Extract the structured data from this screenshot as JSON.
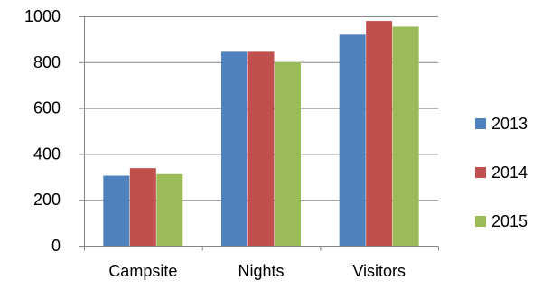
{
  "chart_data": {
    "type": "bar",
    "categories": [
      "Campsite",
      "Nights",
      "Visitors"
    ],
    "series": [
      {
        "name": "2013",
        "color": "#4F81BD",
        "values": [
          305,
          845,
          920
        ]
      },
      {
        "name": "2014",
        "color": "#C0504D",
        "values": [
          338,
          845,
          980
        ]
      },
      {
        "name": "2015",
        "color": "#9BBB59",
        "values": [
          312,
          800,
          955
        ]
      }
    ],
    "title": "",
    "xlabel": "",
    "ylabel": "",
    "ylim": [
      0,
      1000
    ],
    "yticks": [
      0,
      200,
      400,
      600,
      800,
      1000
    ],
    "grid": true,
    "legend_position": "right"
  }
}
